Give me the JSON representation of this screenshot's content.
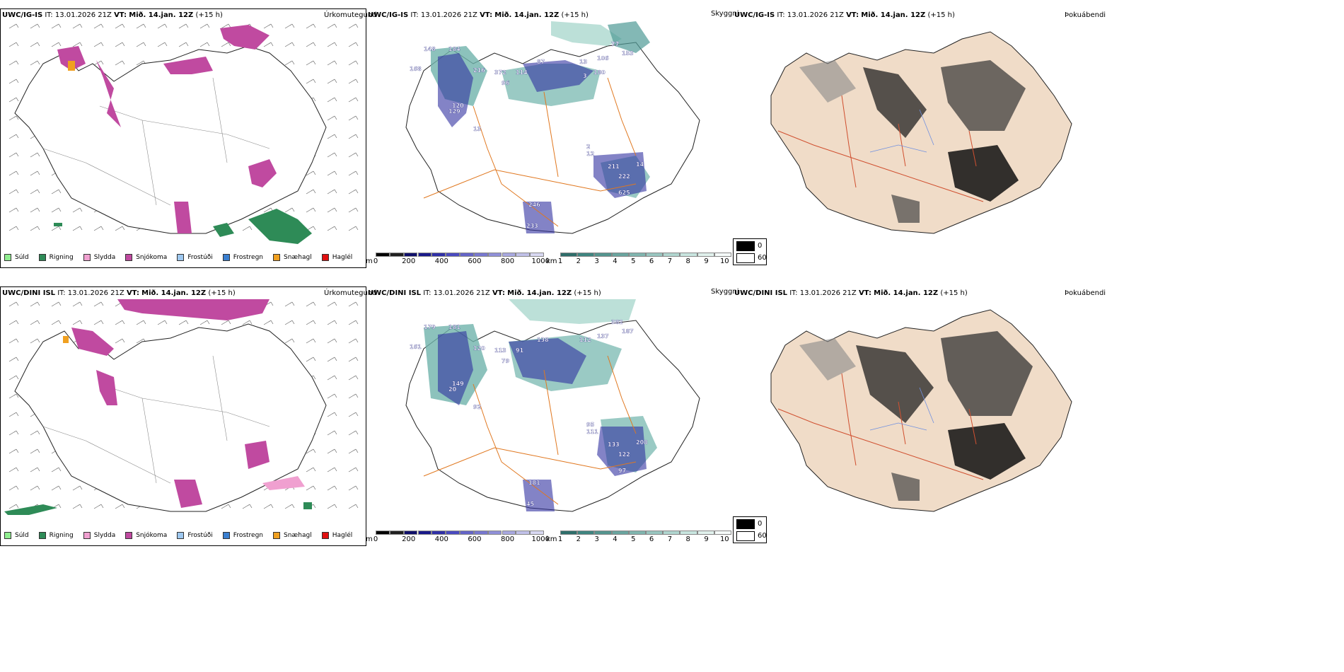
{
  "rows": [
    {
      "precip": {
        "model": "UWC/IG-IS",
        "it_label": "IT:",
        "it_value": "13.01.2026 21Z",
        "vt_label": "VT:",
        "vt_value": "Mið. 14.jan. 12Z",
        "lead": "(+15 h)",
        "type": "Úrkomutegund"
      },
      "cloudbase": {
        "model": "UWC/IG-IS",
        "it_label": "IT:",
        "it_value": "13.01.2026 21Z",
        "vt_label": "VT:",
        "vt_value": "Mið. 14.jan. 12Z",
        "lead": "(+15 h)",
        "type": "Skyggni"
      },
      "cover": {
        "model": "UWC/IG-IS",
        "it_label": "IT:",
        "it_value": "13.01.2026 21Z",
        "vt_label": "VT:",
        "vt_value": "Mið. 14.jan. 12Z",
        "lead": "(+15 h)",
        "type": "Þokuábendi"
      },
      "cloud_labels": [
        "77",
        "148",
        "184",
        "168",
        "216",
        "372",
        "96",
        "114",
        "87",
        "106",
        "153",
        "13",
        "120",
        "129",
        "13",
        "2",
        "12",
        "211",
        "222",
        "14",
        "625",
        "246",
        "233",
        "180",
        "3"
      ]
    },
    {
      "precip": {
        "model": "UWC/DINI ISL",
        "it_label": "IT:",
        "it_value": "13.01.2026 21Z",
        "vt_label": "VT:",
        "vt_value": "Mið. 14.jan. 12Z",
        "lead": "(+15 h)",
        "type": "Úrkomutegund"
      },
      "cloudbase": {
        "model": "UWC/DINI ISL",
        "it_label": "IT:",
        "it_value": "13.01.2026 21Z",
        "vt_label": "VT:",
        "vt_value": "Mið. 14.jan. 12Z",
        "lead": "(+15 h)",
        "type": "Skyggni"
      },
      "cover": {
        "model": "UWC/DINI ISL",
        "it_label": "IT:",
        "it_value": "13.01.2026 21Z",
        "vt_label": "VT:",
        "vt_value": "Mið. 14.jan. 12Z",
        "lead": "(+15 h)",
        "type": "Þokuábendi"
      },
      "cloud_labels": [
        "382",
        "179",
        "181",
        "161",
        "120",
        "113",
        "79",
        "91",
        "138",
        "137",
        "187",
        "112",
        "149",
        "20",
        "92",
        "95",
        "111",
        "133",
        "122",
        "208",
        "97",
        "181",
        "45"
      ]
    }
  ],
  "precip_legend": [
    {
      "label": "Súld",
      "color": "#90ee90"
    },
    {
      "label": "Rigning",
      "color": "#2e8b57"
    },
    {
      "label": "Slydda",
      "color": "#f0a0d0"
    },
    {
      "label": "Snjókoma",
      "color": "#c04aa0"
    },
    {
      "label": "Frostúði",
      "color": "#9ec8f0"
    },
    {
      "label": "Frostregn",
      "color": "#3a7fd0"
    },
    {
      "label": "Snæhagl",
      "color": "#f0a020"
    },
    {
      "label": "Haglél",
      "color": "#e01010"
    }
  ],
  "height_bar": {
    "unit": "m",
    "ticks": [
      "0",
      "200",
      "400",
      "600",
      "800",
      "1000"
    ]
  },
  "vis_bar": {
    "unit": "km",
    "ticks": [
      "1",
      "2",
      "3",
      "4",
      "5",
      "6",
      "7",
      "8",
      "9",
      "10"
    ]
  },
  "fog_legend": [
    {
      "label": "0",
      "color": "#000000"
    },
    {
      "label": "60",
      "color": "#ffffff"
    }
  ]
}
